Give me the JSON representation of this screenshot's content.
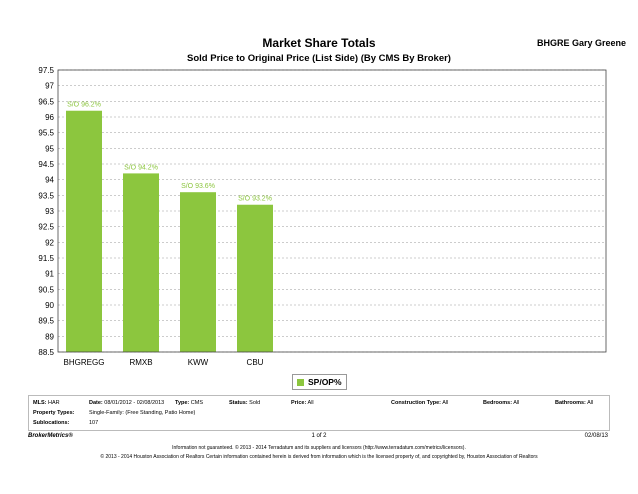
{
  "header": {
    "title": "Market Share Totals",
    "brand": "BHGRE Gary Greene",
    "subtitle": "Sold Price to Original Price (List Side) (By CMS By Broker)"
  },
  "chart_data": {
    "type": "bar",
    "categories": [
      "BHGREGG",
      "RMXB",
      "KWW",
      "CBU"
    ],
    "series": [
      {
        "name": "SP/OP%",
        "values": [
          96.2,
          94.2,
          93.6,
          93.2
        ]
      }
    ],
    "data_labels": [
      "S/O 96.2%",
      "S/O 94.2%",
      "S/O 93.6%",
      "S/O 93.2%"
    ],
    "ylim": [
      88.5,
      97.5
    ],
    "yticks": [
      "97.5",
      "97",
      "96.5",
      "96",
      "95.5",
      "95",
      "94.5",
      "94",
      "93.5",
      "93",
      "92.5",
      "92",
      "91.5",
      "91",
      "90.5",
      "90",
      "89.5",
      "89",
      "88.5"
    ],
    "grid": true,
    "bar_color": "#8cc63e",
    "label_color": "#8cc63e",
    "legend_position": "bottom-center"
  },
  "legend": {
    "label": "SP/OP%"
  },
  "info": {
    "mls_label": "MLS:",
    "mls_value": "HAR",
    "date_label": "Date:",
    "date_value": "08/01/2012 - 02/08/2013",
    "type_label": "Type:",
    "type_value": "CMS",
    "status_label": "Status:",
    "status_value": "Sold",
    "price_label": "Price:",
    "price_value": "All",
    "construction_label": "Construction Type:",
    "construction_value": "All",
    "bedrooms_label": "Bedrooms:",
    "bedrooms_value": "All",
    "bathrooms_label": "Bathrooms:",
    "bathrooms_value": "All",
    "property_label": "Property Types:",
    "property_value": "Single-Family: (Free Standing, Patio Home)",
    "subloc_label": "Sublocations:",
    "subloc_value": "107"
  },
  "footer": {
    "left": "BrokerMetrics®",
    "page": "1 of 2",
    "date": "02/08/13",
    "disclaimer1": "Information not guaranteed. © 2013 - 2014 Terradatum and its suppliers and licensors (http://www.terradatum.com/metrics/licensors).",
    "disclaimer2": "© 2013 - 2014 Houston Association of Realtors Certain information contained herein is derived from information which is the licensed property of, and copyrighted by, Houston Association of Realtors"
  }
}
